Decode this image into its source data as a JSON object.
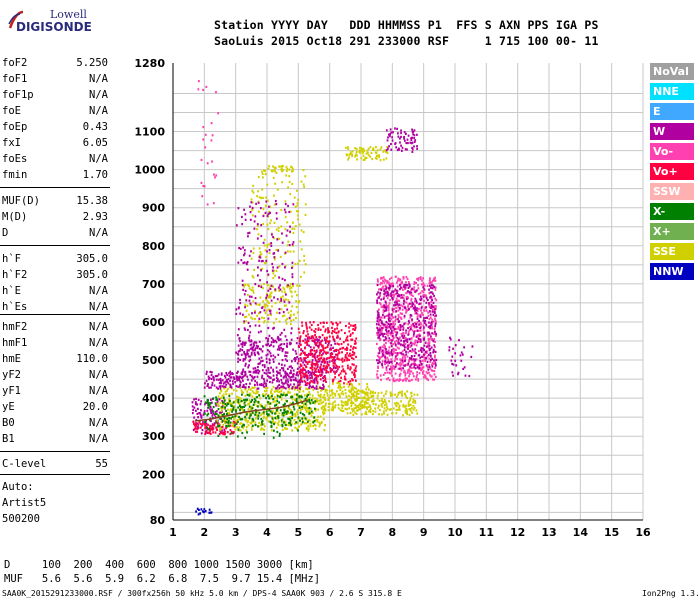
{
  "logo": {
    "line1": "Lowell",
    "line2": "DIGISONDE"
  },
  "header": {
    "line1": "Station YYYY DAY   DDD HHMMSS P1  FFS S AXN PPS IGA PS",
    "line2": "SaoLuis 2015 Oct18 291 233000 RSF     1 715 100 00- 11"
  },
  "params": [
    {
      "name": "foF2",
      "value": "5.250"
    },
    {
      "name": "foF1",
      "value": "N/A"
    },
    {
      "name": "foF1p",
      "value": "N/A"
    },
    {
      "name": "foE",
      "value": "N/A"
    },
    {
      "name": "foEp",
      "value": "0.43"
    },
    {
      "name": "fxI",
      "value": "6.05"
    },
    {
      "name": "foEs",
      "value": "N/A"
    },
    {
      "name": "fmin",
      "value": "1.70"
    },
    {
      "name": "MUF(D)",
      "value": "15.38"
    },
    {
      "name": "M(D)",
      "value": "2.93"
    },
    {
      "name": "D",
      "value": "N/A"
    },
    {
      "name": "h`F",
      "value": "305.0"
    },
    {
      "name": "h`F2",
      "value": "305.0"
    },
    {
      "name": "h`E",
      "value": "N/A"
    },
    {
      "name": "h`Es",
      "value": "N/A"
    },
    {
      "name": "hmF2",
      "value": "N/A"
    },
    {
      "name": "hmF1",
      "value": "N/A"
    },
    {
      "name": "hmE",
      "value": "110.0"
    },
    {
      "name": "yF2",
      "value": "N/A"
    },
    {
      "name": "yF1",
      "value": "N/A"
    },
    {
      "name": "yE",
      "value": "20.0"
    },
    {
      "name": "B0",
      "value": "N/A"
    },
    {
      "name": "B1",
      "value": "N/A"
    },
    {
      "name": "C-level",
      "value": "55"
    }
  ],
  "auto": {
    "line1": "Auto:",
    "line2": "Artist5",
    "line3": "500200"
  },
  "footer": {
    "d_line": "D     100  200  400  600  800 1000 1500 3000 [km]",
    "muf_line": "MUF   5.6  5.6  5.9  6.2  6.8  7.5  9.7 15.4 [MHz]",
    "credit": "SAA0K_2015291233000.RSF / 300fx256h 50 kHz 5.0 km / DPS-4 SAA0K 903 / 2.6 S 315.8 E",
    "version": "Ion2Png 1.3.17"
  },
  "legend": [
    {
      "label": "NoVal",
      "color": "#a0a0a0"
    },
    {
      "label": "NNE",
      "color": "#00e0ff"
    },
    {
      "label": "E",
      "color": "#40a8ff"
    },
    {
      "label": "W",
      "color": "#b000a0"
    },
    {
      "label": "Vo-",
      "color": "#ff40b0"
    },
    {
      "label": "Vo+",
      "color": "#ff0040"
    },
    {
      "label": "SSW",
      "color": "#ffb0b0"
    },
    {
      "label": "X-",
      "color": "#008000"
    },
    {
      "label": "X+",
      "color": "#70b050"
    },
    {
      "label": "SSE",
      "color": "#d0d000"
    },
    {
      "label": "NNW",
      "color": "#0000c0"
    }
  ],
  "chart_data": {
    "type": "scatter",
    "title": "",
    "xlabel": "",
    "ylabel": "",
    "xlim": [
      1,
      16
    ],
    "ylim": [
      80,
      1280
    ],
    "x_ticks": [
      1,
      2,
      3,
      4,
      5,
      6,
      7,
      8,
      9,
      10,
      11,
      12,
      13,
      14,
      15,
      16
    ],
    "y_ticks": [
      80,
      200,
      300,
      400,
      500,
      600,
      700,
      800,
      900,
      1000,
      1100,
      1280
    ],
    "grid": true,
    "legend_position": "right",
    "clusters": [
      {
        "series": "W",
        "x_range": [
          1.6,
          2.6
        ],
        "y_range": [
          310,
          400
        ],
        "density": 0.5
      },
      {
        "series": "Vo+",
        "x_range": [
          1.6,
          3.0
        ],
        "y_range": [
          310,
          340
        ],
        "density": 0.6
      },
      {
        "series": "SSE",
        "x_range": [
          2.4,
          5.8
        ],
        "y_range": [
          320,
          430
        ],
        "density": 0.5
      },
      {
        "series": "X-",
        "x_range": [
          2.0,
          5.5
        ],
        "y_range": [
          330,
          410
        ],
        "density": 0.25
      },
      {
        "series": "W",
        "x_range": [
          2.0,
          5.8
        ],
        "y_range": [
          430,
          470
        ],
        "density": 0.6
      },
      {
        "series": "W",
        "x_range": [
          3.0,
          6.2
        ],
        "y_range": [
          470,
          560
        ],
        "density": 0.4
      },
      {
        "series": "Vo+",
        "x_range": [
          5.0,
          6.8
        ],
        "y_range": [
          440,
          600
        ],
        "density": 0.5
      },
      {
        "series": "Vo-",
        "x_range": [
          7.5,
          9.4
        ],
        "y_range": [
          450,
          720
        ],
        "density": 0.55
      },
      {
        "series": "W",
        "x_range": [
          7.5,
          9.4
        ],
        "y_range": [
          480,
          700
        ],
        "density": 0.35
      },
      {
        "series": "SSE",
        "x_range": [
          6.5,
          8.8
        ],
        "y_range": [
          360,
          420
        ],
        "density": 0.5
      },
      {
        "series": "SSE",
        "x_range": [
          5.8,
          7.2
        ],
        "y_range": [
          370,
          440
        ],
        "density": 0.5
      },
      {
        "series": "SSE",
        "x_range": [
          3.2,
          5.0
        ],
        "y_range": [
          600,
          700
        ],
        "density": 0.3
      },
      {
        "series": "SSE",
        "x_range": [
          3.5,
          5.2
        ],
        "y_range": [
          720,
          1000
        ],
        "density": 0.12
      },
      {
        "series": "W",
        "x_range": [
          3.0,
          4.8
        ],
        "y_range": [
          520,
          920
        ],
        "density": 0.1
      },
      {
        "series": "SSE",
        "x_range": [
          6.5,
          7.8
        ],
        "y_range": [
          1030,
          1060
        ],
        "density": 0.6
      },
      {
        "series": "W",
        "x_range": [
          7.8,
          8.8
        ],
        "y_range": [
          1050,
          1110
        ],
        "density": 0.4
      },
      {
        "series": "SSE",
        "x_range": [
          4.0,
          4.8
        ],
        "y_range": [
          1000,
          1010
        ],
        "density": 0.8
      },
      {
        "series": "W",
        "x_range": [
          9.8,
          10.6
        ],
        "y_range": [
          460,
          560
        ],
        "density": 0.15
      },
      {
        "series": "NNW",
        "x_range": [
          1.7,
          2.2
        ],
        "y_range": [
          100,
          110
        ],
        "density": 0.8
      },
      {
        "series": "X-",
        "x_range": [
          2.0,
          5.0
        ],
        "y_range": [
          300,
          400
        ],
        "density": 0.08
      },
      {
        "series": "Vo-",
        "x_range": [
          1.8,
          2.4
        ],
        "y_range": [
          900,
          1240
        ],
        "density": 0.05
      }
    ],
    "trace": {
      "series": "X-",
      "x": [
        1.7,
        2.2,
        2.8,
        3.4,
        3.9,
        4.4,
        4.9,
        5.3
      ],
      "y": [
        340,
        345,
        355,
        365,
        370,
        375,
        385,
        395
      ]
    }
  }
}
